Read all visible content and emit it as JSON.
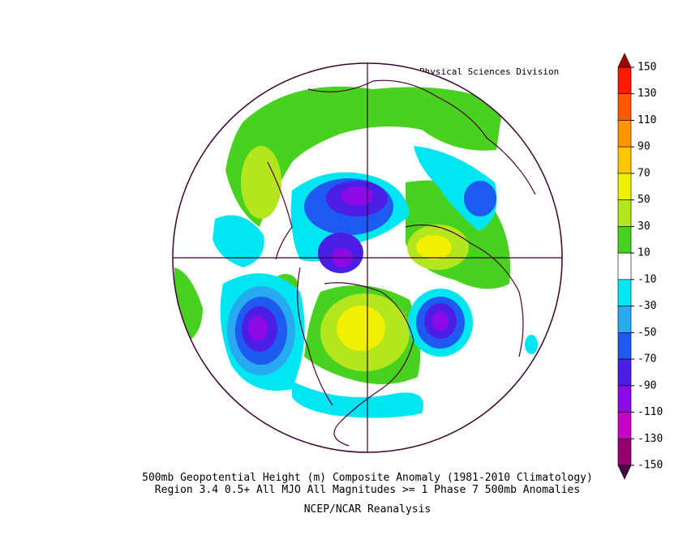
{
  "map": {
    "header": "NOAA/ESRL Physical Sciences Division",
    "caption_lines": [
      "500mb Geopotential Height (m) Composite Anomaly (1981-2010 Climatology)",
      "Region 3.4 0.5+ All MJO All Magnitudes >= 1 Phase 7 500mb  Anomalies"
    ],
    "source": "NCEP/NCAR Reanalysis",
    "colorbar": {
      "ticks": [
        150,
        130,
        110,
        90,
        70,
        50,
        30,
        10,
        -10,
        -30,
        -50,
        -70,
        -90,
        -110,
        -130,
        -150
      ],
      "colors": [
        "#ff1a00",
        "#ff5a00",
        "#ff9600",
        "#ffc800",
        "#f0f000",
        "#b4e61e",
        "#46d21e",
        "#ffffff",
        "#00e6f0",
        "#28aaf0",
        "#1e5af0",
        "#4b1ee6",
        "#8c0ae6",
        "#c800c8",
        "#96006e"
      ],
      "over_color": "#a00000",
      "under_color": "#4b004b"
    }
  }
}
